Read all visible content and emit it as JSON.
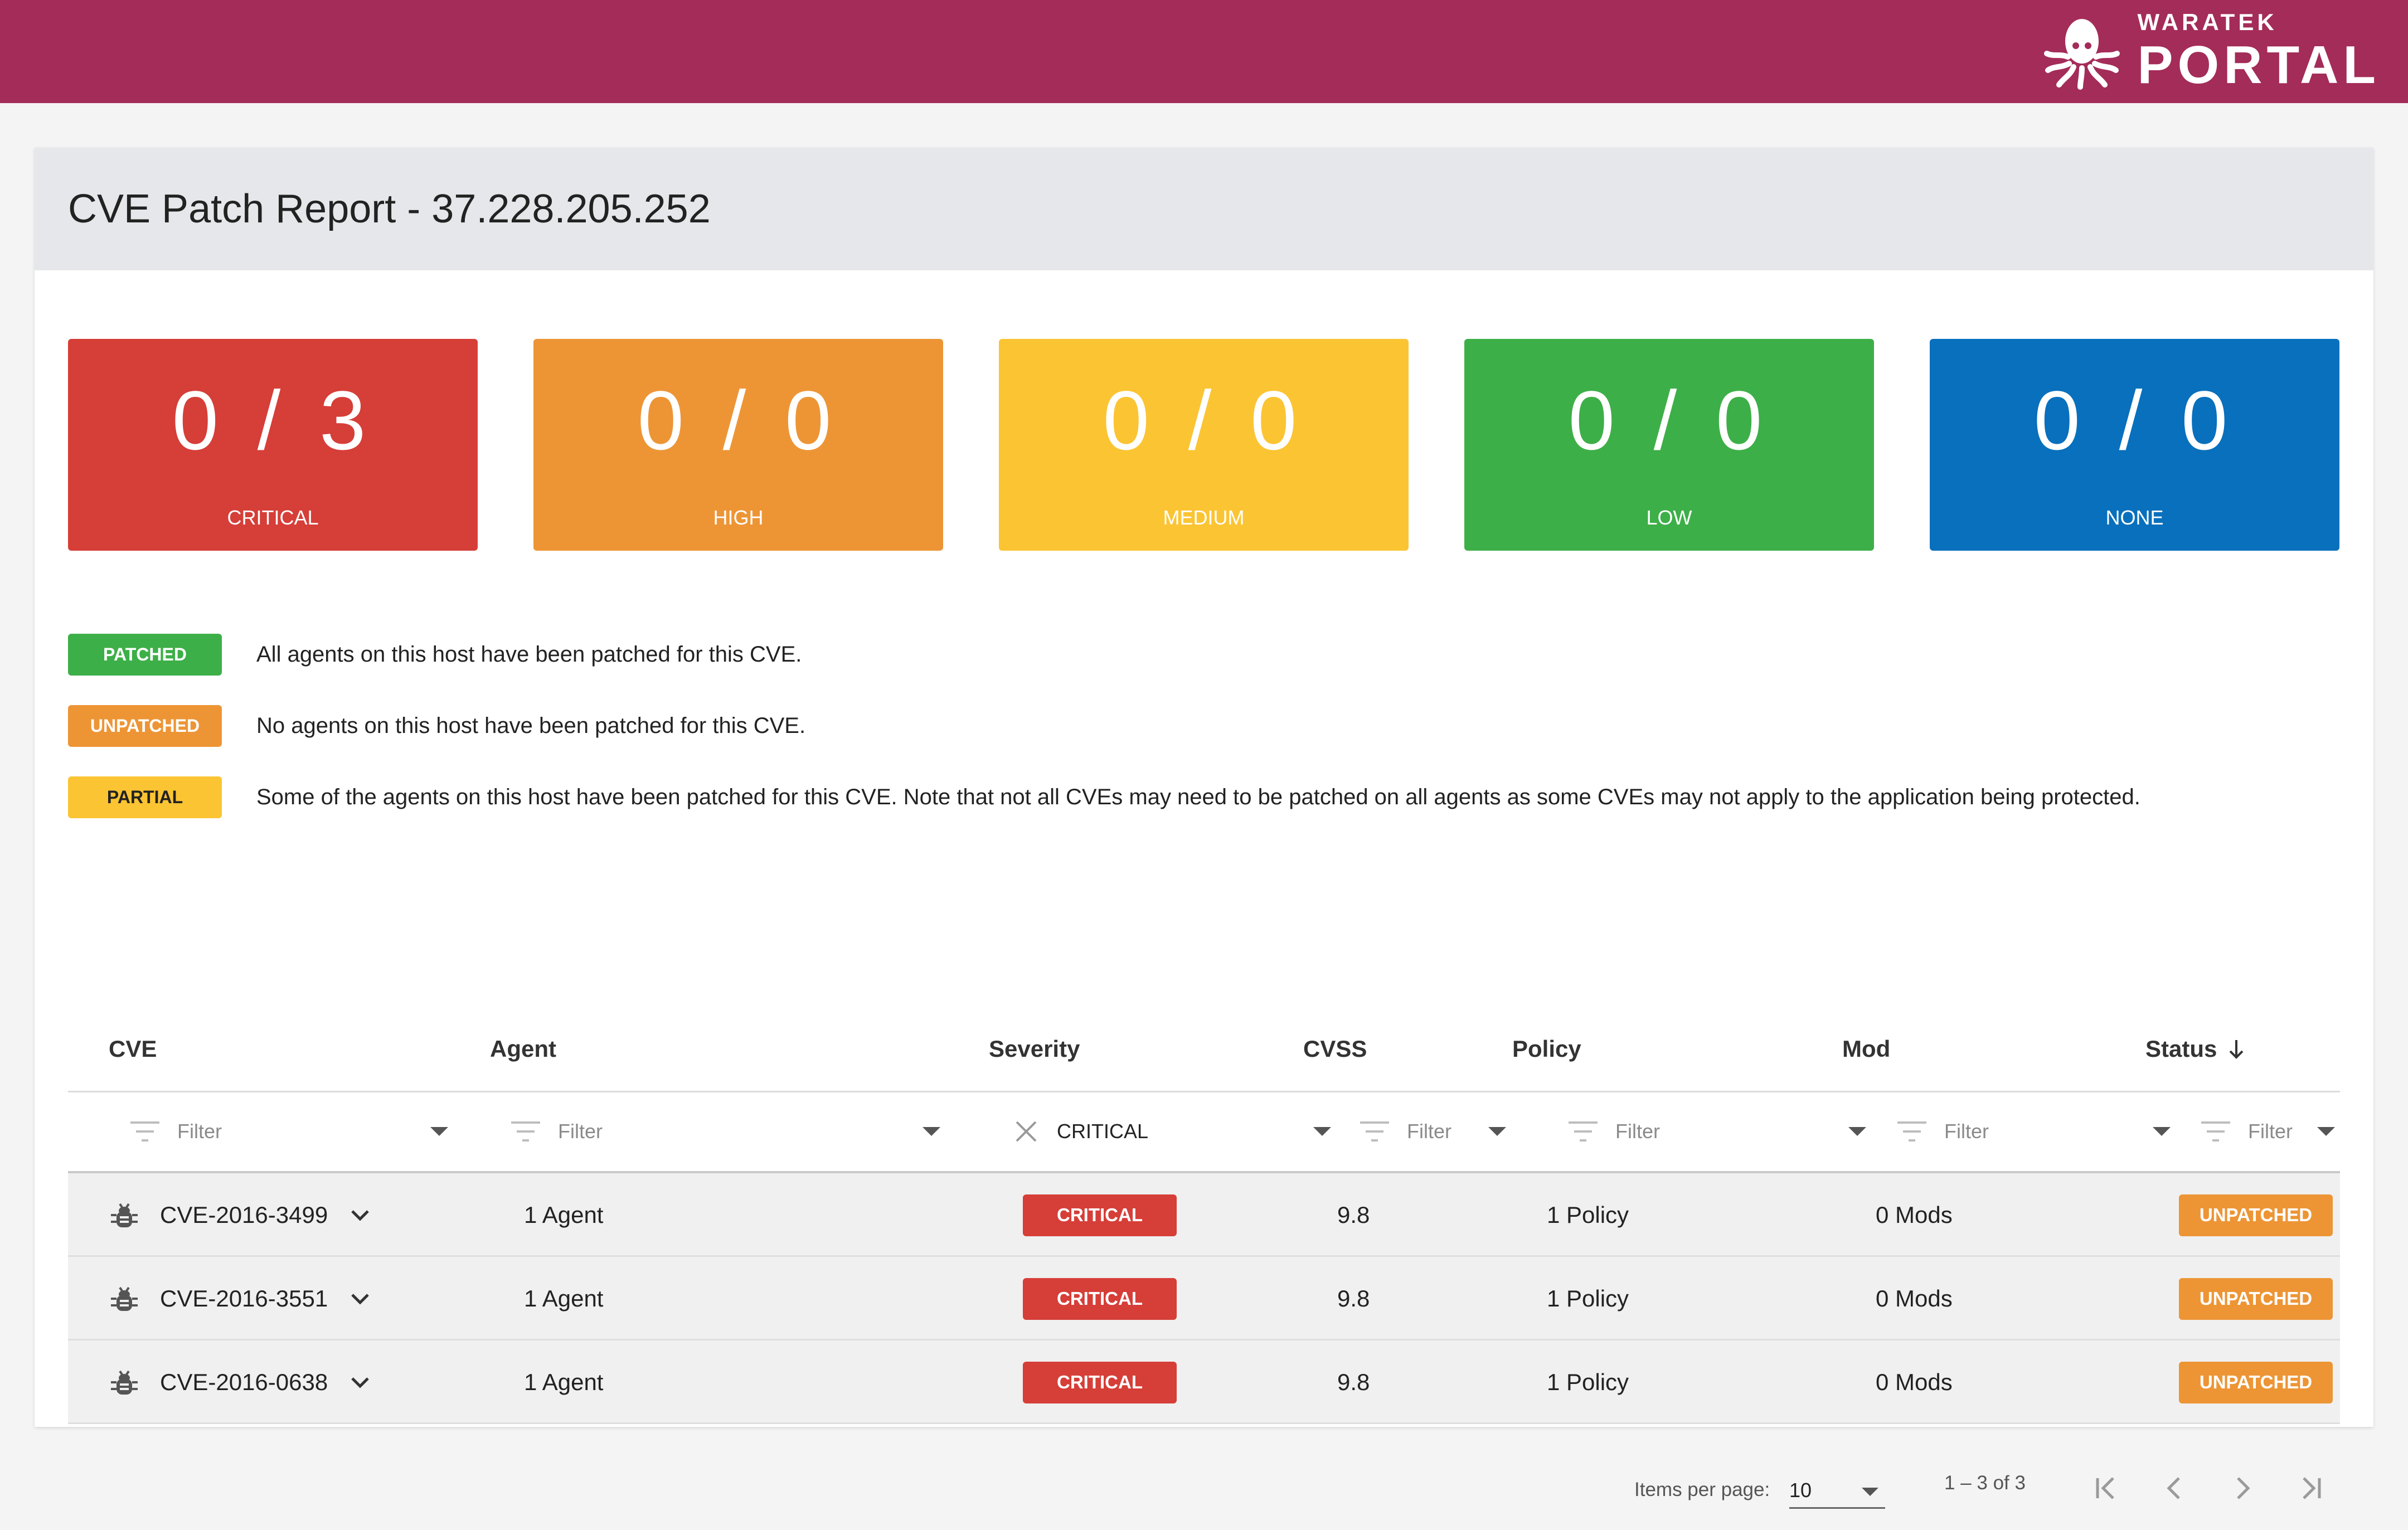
{
  "header": {
    "logo_small": "WARATEK",
    "logo_big": "PORTAL",
    "background": "#a42c59"
  },
  "page": {
    "title": "CVE Patch Report - 37.228.205.252"
  },
  "summary": [
    {
      "value": "0 / 3",
      "label": "CRITICAL",
      "color": "#d63e38"
    },
    {
      "value": "0 / 0",
      "label": "HIGH",
      "color": "#ed9535"
    },
    {
      "value": "0 / 0",
      "label": "MEDIUM",
      "color": "#fbc433"
    },
    {
      "value": "0 / 0",
      "label": "LOW",
      "color": "#3daf48"
    },
    {
      "value": "0 / 0",
      "label": "NONE",
      "color": "#0870bd"
    }
  ],
  "legend": [
    {
      "chip": "PATCHED",
      "text": "All agents on this host have been patched for this CVE.",
      "color": "#3daf48"
    },
    {
      "chip": "UNPATCHED",
      "text": "No agents on this host have been patched for this CVE.",
      "color": "#ed9535"
    },
    {
      "chip": "PARTIAL",
      "text": "Some of the agents on this host have been patched for this CVE. Note that not all CVEs may need to be patched on all agents as some CVEs may not apply to the application being protected.",
      "color": "#fbc433"
    }
  ],
  "table": {
    "columns": [
      "CVE",
      "Agent",
      "Severity",
      "CVSS",
      "Policy",
      "Mod",
      "Status"
    ],
    "sort_icon": "arrow-down-icon",
    "filters": {
      "placeholder": "Filter",
      "severity_value": "CRITICAL"
    },
    "rows": [
      {
        "cve": "CVE-2016-3499",
        "agent": "1 Agent",
        "severity": "CRITICAL",
        "cvss": "9.8",
        "policy": "1 Policy",
        "mod": "0 Mods",
        "status": "UNPATCHED"
      },
      {
        "cve": "CVE-2016-3551",
        "agent": "1 Agent",
        "severity": "CRITICAL",
        "cvss": "9.8",
        "policy": "1 Policy",
        "mod": "0 Mods",
        "status": "UNPATCHED"
      },
      {
        "cve": "CVE-2016-0638",
        "agent": "1 Agent",
        "severity": "CRITICAL",
        "cvss": "9.8",
        "policy": "1 Policy",
        "mod": "0 Mods",
        "status": "UNPATCHED"
      }
    ],
    "severity_color": "#d63e38",
    "status_color": "#ed9535"
  },
  "paginator": {
    "items_per_page_label": "Items per page:",
    "items_per_page": "10",
    "range": "1 – 3 of 3"
  }
}
